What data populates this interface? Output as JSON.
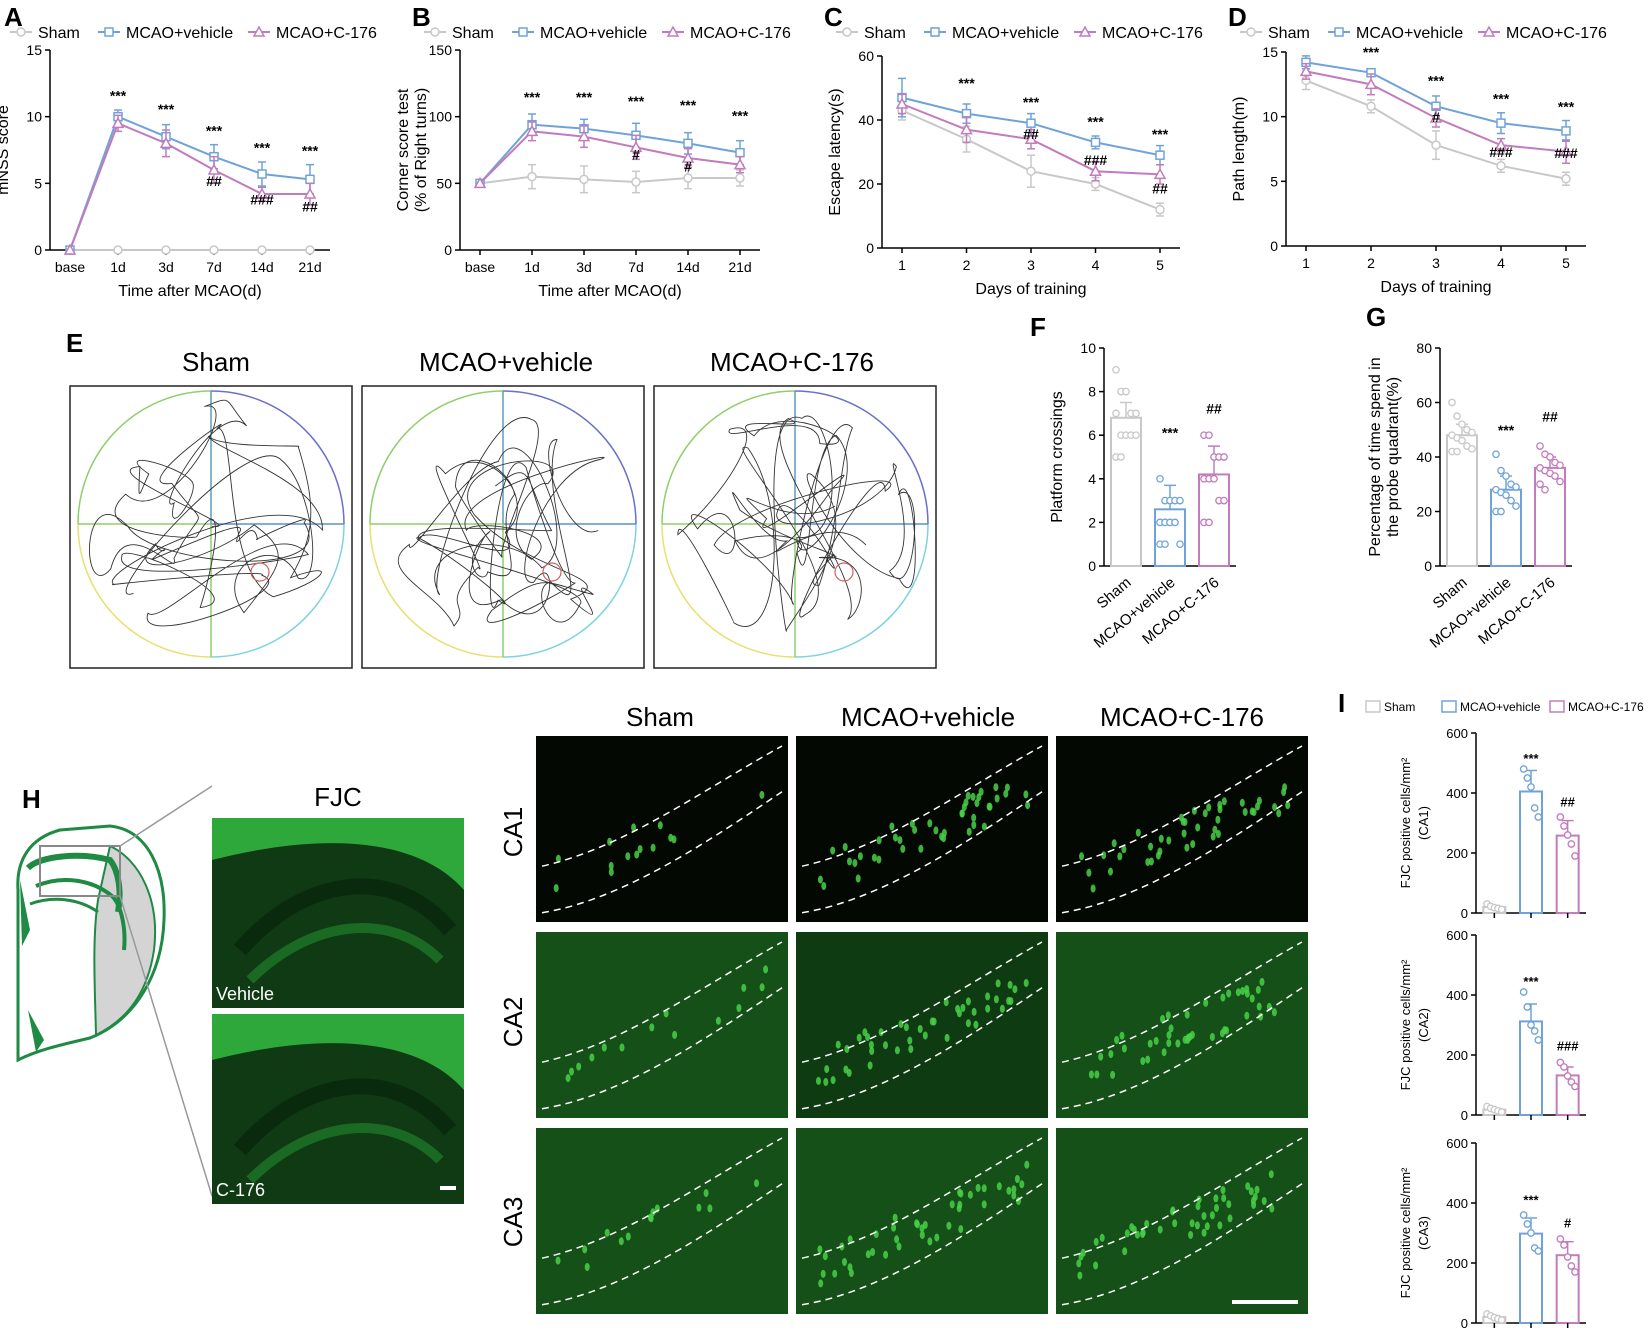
{
  "colors": {
    "sham": "#c8c8c8",
    "vehicle": "#6fa3d8",
    "c176": "#c27bbd",
    "fluor_bg": "#07140a",
    "fluor": "#3ec23e",
    "tissue": "#1e8a44"
  },
  "panels": {
    "A": "A",
    "B": "B",
    "C": "C",
    "D": "D",
    "E": "E",
    "F": "F",
    "G": "G",
    "H": "H",
    "I": "I"
  },
  "legend": {
    "sham": "Sham",
    "vehicle": "MCAO+vehicle",
    "c176": "MCAO+C-176"
  },
  "chart_data": [
    {
      "id": "A",
      "type": "line",
      "title": "",
      "ylabel": "mNSS score",
      "xlabel": "Time after MCAO(d)",
      "categories": [
        "base",
        "1d",
        "3d",
        "7d",
        "14d",
        "21d"
      ],
      "ylim": [
        0,
        15
      ],
      "yticks": [
        0,
        5,
        10,
        15
      ],
      "series": [
        {
          "name": "Sham",
          "values": [
            0,
            0,
            0,
            0,
            0,
            0
          ],
          "err": [
            0,
            0,
            0,
            0,
            0,
            0
          ]
        },
        {
          "name": "MCAO+vehicle",
          "values": [
            0,
            10,
            8.5,
            7,
            5.7,
            5.3
          ],
          "err": [
            0,
            0.5,
            0.9,
            0.9,
            0.9,
            1.1
          ]
        },
        {
          "name": "MCAO+C-176",
          "values": [
            0,
            9.5,
            8.0,
            6.0,
            4.2,
            4.2
          ],
          "err": [
            0,
            0.6,
            1.0,
            1.0,
            0.5,
            0.8
          ]
        }
      ],
      "annotations": [
        {
          "cat": "1d",
          "y": 11.2,
          "text": "***"
        },
        {
          "cat": "3d",
          "y": 10.2,
          "text": "***"
        },
        {
          "cat": "7d",
          "y": 8.6,
          "text": "***"
        },
        {
          "cat": "7d",
          "y": 4.8,
          "text": "##"
        },
        {
          "cat": "14d",
          "y": 7.3,
          "text": "***"
        },
        {
          "cat": "14d",
          "y": 3.4,
          "text": "###"
        },
        {
          "cat": "21d",
          "y": 7.1,
          "text": "***"
        },
        {
          "cat": "21d",
          "y": 2.9,
          "text": "##"
        }
      ]
    },
    {
      "id": "B",
      "type": "line",
      "title": "",
      "ylabel": "Corner score test",
      "ylabel2": "(% of Right turns)",
      "xlabel": "Time after MCAO(d)",
      "categories": [
        "base",
        "1d",
        "3d",
        "7d",
        "14d",
        "21d"
      ],
      "ylim": [
        0,
        150
      ],
      "yticks": [
        0,
        50,
        100,
        150
      ],
      "series": [
        {
          "name": "Sham",
          "values": [
            50,
            55,
            53,
            51,
            54,
            54
          ],
          "err": [
            0,
            9,
            10,
            8,
            8,
            6
          ]
        },
        {
          "name": "MCAO+vehicle",
          "values": [
            50,
            94,
            91,
            86,
            80,
            73
          ],
          "err": [
            0,
            8,
            7,
            9,
            8,
            9
          ]
        },
        {
          "name": "MCAO+C-176",
          "values": [
            50,
            89,
            85,
            77,
            69,
            64
          ],
          "err": [
            0,
            7,
            8,
            9,
            7,
            6
          ]
        }
      ],
      "annotations": [
        {
          "cat": "1d",
          "y": 111,
          "text": "***"
        },
        {
          "cat": "3d",
          "y": 111,
          "text": "***"
        },
        {
          "cat": "7d",
          "y": 108,
          "text": "***"
        },
        {
          "cat": "7d",
          "y": 68,
          "text": "#"
        },
        {
          "cat": "14d",
          "y": 105,
          "text": "***"
        },
        {
          "cat": "14d",
          "y": 59,
          "text": "#"
        },
        {
          "cat": "21d",
          "y": 97,
          "text": "***"
        }
      ]
    },
    {
      "id": "C",
      "type": "line",
      "title": "",
      "ylabel": "Escape latency(s)",
      "xlabel": "Days of training",
      "categories": [
        "1",
        "2",
        "3",
        "4",
        "5"
      ],
      "ylim": [
        0,
        60
      ],
      "yticks": [
        0,
        20,
        40,
        60
      ],
      "series": [
        {
          "name": "Sham",
          "values": [
            43,
            34,
            24,
            20,
            12
          ],
          "err": [
            3,
            4,
            5,
            2,
            2
          ]
        },
        {
          "name": "MCAO+vehicle",
          "values": [
            47,
            42,
            39,
            33,
            29
          ],
          "err": [
            6,
            3,
            3,
            2,
            3
          ]
        },
        {
          "name": "MCAO+C-176",
          "values": [
            45,
            37,
            34,
            24,
            23
          ],
          "err": [
            3,
            4,
            3,
            3,
            3
          ]
        }
      ],
      "annotations": [
        {
          "cat": "2",
          "y": 50,
          "text": "***"
        },
        {
          "cat": "3",
          "y": 44,
          "text": "***"
        },
        {
          "cat": "3",
          "y": 34,
          "text": "##"
        },
        {
          "cat": "4",
          "y": 38,
          "text": "***"
        },
        {
          "cat": "4",
          "y": 26,
          "text": "###"
        },
        {
          "cat": "5",
          "y": 34,
          "text": "***"
        },
        {
          "cat": "5",
          "y": 17,
          "text": "##"
        }
      ]
    },
    {
      "id": "D",
      "type": "line",
      "title": "",
      "ylabel": "Path length(m)",
      "xlabel": "Days of training",
      "categories": [
        "1",
        "2",
        "3",
        "4",
        "5"
      ],
      "ylim": [
        0,
        15
      ],
      "yticks": [
        0,
        5,
        10,
        15
      ],
      "series": [
        {
          "name": "Sham",
          "values": [
            12.8,
            10.8,
            7.8,
            6.2,
            5.2
          ],
          "err": [
            0.7,
            0.5,
            1.1,
            0.5,
            0.5
          ]
        },
        {
          "name": "MCAO+vehicle",
          "values": [
            14.2,
            13.4,
            10.8,
            9.5,
            8.9
          ],
          "err": [
            0.5,
            0.3,
            0.8,
            0.8,
            0.8
          ]
        },
        {
          "name": "MCAO+C-176",
          "values": [
            13.5,
            12.5,
            9.9,
            7.8,
            7.3
          ],
          "err": [
            0.6,
            0.8,
            0.7,
            0.5,
            0.9
          ]
        }
      ],
      "annotations": [
        {
          "cat": "2",
          "y": 14.6,
          "text": "***"
        },
        {
          "cat": "3",
          "y": 12.4,
          "text": "***"
        },
        {
          "cat": "3",
          "y": 9.6,
          "text": "#"
        },
        {
          "cat": "4",
          "y": 11.0,
          "text": "***"
        },
        {
          "cat": "4",
          "y": 6.9,
          "text": "###"
        },
        {
          "cat": "5",
          "y": 10.4,
          "text": "***"
        },
        {
          "cat": "5",
          "y": 6.8,
          "text": "###"
        }
      ]
    },
    {
      "id": "F",
      "type": "bar",
      "title": "",
      "ylabel": "Platform crossings",
      "xlabel": "",
      "categories": [
        "Sham",
        "MCAO+vehicle",
        "MCAO+C-176"
      ],
      "values": [
        6.8,
        2.6,
        4.2
      ],
      "err": [
        0.7,
        1.1,
        1.3
      ],
      "points": [
        [
          9,
          8,
          8,
          7,
          7,
          7,
          6,
          6,
          6,
          6,
          5,
          5
        ],
        [
          4,
          3,
          3,
          3,
          3,
          2,
          2,
          2,
          2,
          1,
          1,
          1
        ],
        [
          6,
          6,
          5,
          5,
          5,
          4,
          4,
          4,
          3,
          3,
          2,
          2
        ]
      ],
      "ylim": [
        0,
        10
      ],
      "yticks": [
        0,
        2,
        4,
        6,
        8,
        10
      ],
      "annotations": [
        {
          "cat": "MCAO+vehicle",
          "y": 5.9,
          "text": "***"
        },
        {
          "cat": "MCAO+C-176",
          "y": 7.0,
          "text": "##"
        }
      ]
    },
    {
      "id": "G",
      "type": "bar",
      "title": "",
      "ylabel": "Percentage of time spend in",
      "ylabel2": "the probe quadrant(%)",
      "xlabel": "",
      "categories": [
        "Sham",
        "MCAO+vehicle",
        "MCAO+C-176"
      ],
      "values": [
        48,
        28,
        36
      ],
      "err": [
        4,
        5,
        4
      ],
      "points": [
        [
          60,
          55,
          52,
          50,
          49,
          48,
          47,
          46,
          44,
          43,
          42,
          42
        ],
        [
          41,
          35,
          33,
          30,
          29,
          28,
          27,
          26,
          24,
          22,
          20,
          20
        ],
        [
          44,
          41,
          40,
          38,
          37,
          36,
          35,
          34,
          33,
          31,
          30,
          28
        ]
      ],
      "ylim": [
        0,
        80
      ],
      "yticks": [
        0,
        20,
        40,
        60,
        80
      ],
      "annotations": [
        {
          "cat": "MCAO+vehicle",
          "y": 48,
          "text": "***"
        },
        {
          "cat": "MCAO+C-176",
          "y": 53,
          "text": "##"
        }
      ]
    },
    {
      "id": "I-CA1",
      "type": "bar",
      "title": "",
      "ylabel": "FJC positive cells/mm²",
      "ylabel2": "(CA1)",
      "xlabel": "",
      "categories": [
        "Sham",
        "MCAO+vehicle",
        "MCAO+C-176"
      ],
      "values": [
        20,
        405,
        258
      ],
      "err": [
        5,
        70,
        50
      ],
      "points": [
        [
          30,
          22,
          18,
          15,
          12
        ],
        [
          480,
          450,
          420,
          350,
          320
        ],
        [
          320,
          290,
          260,
          230,
          190
        ]
      ],
      "ylim": [
        0,
        600
      ],
      "yticks": [
        0,
        200,
        400,
        600
      ],
      "annotations": [
        {
          "cat": "MCAO+vehicle",
          "y": 500,
          "text": "***"
        },
        {
          "cat": "MCAO+C-176",
          "y": 355,
          "text": "##"
        }
      ]
    },
    {
      "id": "I-CA2",
      "type": "bar",
      "title": "",
      "ylabel": "FJC positive cells/mm²",
      "ylabel2": "(CA2)",
      "xlabel": "",
      "categories": [
        "Sham",
        "MCAO+vehicle",
        "MCAO+C-176"
      ],
      "values": [
        18,
        312,
        132
      ],
      "err": [
        5,
        58,
        28
      ],
      "points": [
        [
          28,
          22,
          18,
          14,
          10
        ],
        [
          410,
          360,
          300,
          280,
          250
        ],
        [
          175,
          160,
          130,
          110,
          95
        ]
      ],
      "ylim": [
        0,
        600
      ],
      "yticks": [
        0,
        200,
        400,
        600
      ],
      "annotations": [
        {
          "cat": "MCAO+vehicle",
          "y": 430,
          "text": "***"
        },
        {
          "cat": "MCAO+C-176",
          "y": 215,
          "text": "###"
        }
      ]
    },
    {
      "id": "I-CA3",
      "type": "bar",
      "title": "",
      "ylabel": "FJC positive cells/mm²",
      "ylabel2": "(CA3)",
      "xlabel": "",
      "categories": [
        "Sham",
        "MCAO+vehicle",
        "MCAO+C-176"
      ],
      "values": [
        20,
        298,
        226
      ],
      "err": [
        5,
        52,
        45
      ],
      "points": [
        [
          30,
          24,
          18,
          14,
          10
        ],
        [
          360,
          330,
          300,
          250,
          240
        ],
        [
          280,
          260,
          220,
          190,
          170
        ]
      ],
      "ylim": [
        0,
        600
      ],
      "yticks": [
        0,
        200,
        400,
        600
      ],
      "annotations": [
        {
          "cat": "MCAO+vehicle",
          "y": 395,
          "text": "***"
        },
        {
          "cat": "MCAO+C-176",
          "y": 318,
          "text": "#"
        }
      ]
    }
  ],
  "panel_E": {
    "titles": [
      "Sham",
      "MCAO+vehicle",
      "MCAO+C-176"
    ]
  },
  "panel_H": {
    "title": "FJC",
    "image_labels": [
      "Vehicle",
      "C-176"
    ],
    "col_titles": [
      "Sham",
      "MCAO+vehicle",
      "MCAO+C-176"
    ],
    "row_labels": [
      "CA1",
      "CA2",
      "CA3"
    ]
  }
}
